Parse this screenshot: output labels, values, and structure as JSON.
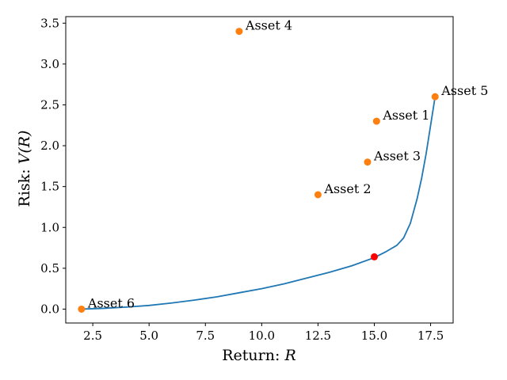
{
  "chart_data": {
    "type": "scatter",
    "xlabel_text": "Return: ",
    "xlabel_var": "R",
    "ylabel_text": "Risk: ",
    "ylabel_var": "V(R)",
    "xlim": [
      1.3,
      18.5
    ],
    "ylim": [
      -0.17,
      3.58
    ],
    "xticks": [
      2.5,
      5.0,
      7.5,
      10.0,
      12.5,
      15.0,
      17.5
    ],
    "xtick_labels": [
      "2.5",
      "5.0",
      "7.5",
      "10.0",
      "12.5",
      "15.0",
      "17.5"
    ],
    "yticks": [
      0.0,
      0.5,
      1.0,
      1.5,
      2.0,
      2.5,
      3.0,
      3.5
    ],
    "ytick_labels": [
      "0.0",
      "0.5",
      "1.0",
      "1.5",
      "2.0",
      "2.5",
      "3.0",
      "3.5"
    ],
    "assets": [
      {
        "name": "Asset 1",
        "x": 15.1,
        "y": 2.3
      },
      {
        "name": "Asset 2",
        "x": 12.5,
        "y": 1.4
      },
      {
        "name": "Asset 3",
        "x": 14.7,
        "y": 1.8
      },
      {
        "name": "Asset 4",
        "x": 9.0,
        "y": 3.4
      },
      {
        "name": "Asset 5",
        "x": 17.7,
        "y": 2.6
      },
      {
        "name": "Asset 6",
        "x": 2.0,
        "y": 0.0
      }
    ],
    "frontier": {
      "x": [
        2.0,
        3.0,
        4.0,
        5.0,
        6.0,
        7.0,
        8.0,
        9.0,
        10.0,
        11.0,
        12.0,
        13.0,
        14.0,
        15.0,
        15.5,
        16.0,
        16.3,
        16.6,
        16.9,
        17.1,
        17.3,
        17.5,
        17.7
      ],
      "y": [
        0.0,
        0.01,
        0.025,
        0.045,
        0.075,
        0.11,
        0.15,
        0.2,
        0.25,
        0.31,
        0.38,
        0.45,
        0.53,
        0.63,
        0.7,
        0.78,
        0.87,
        1.05,
        1.35,
        1.6,
        1.9,
        2.25,
        2.6
      ]
    },
    "highlight": {
      "x": 15.0,
      "y": 0.64
    },
    "colors": {
      "frontier": "#1f77b4",
      "assets": "#ff7f0e",
      "highlight": "#ff0000"
    }
  }
}
